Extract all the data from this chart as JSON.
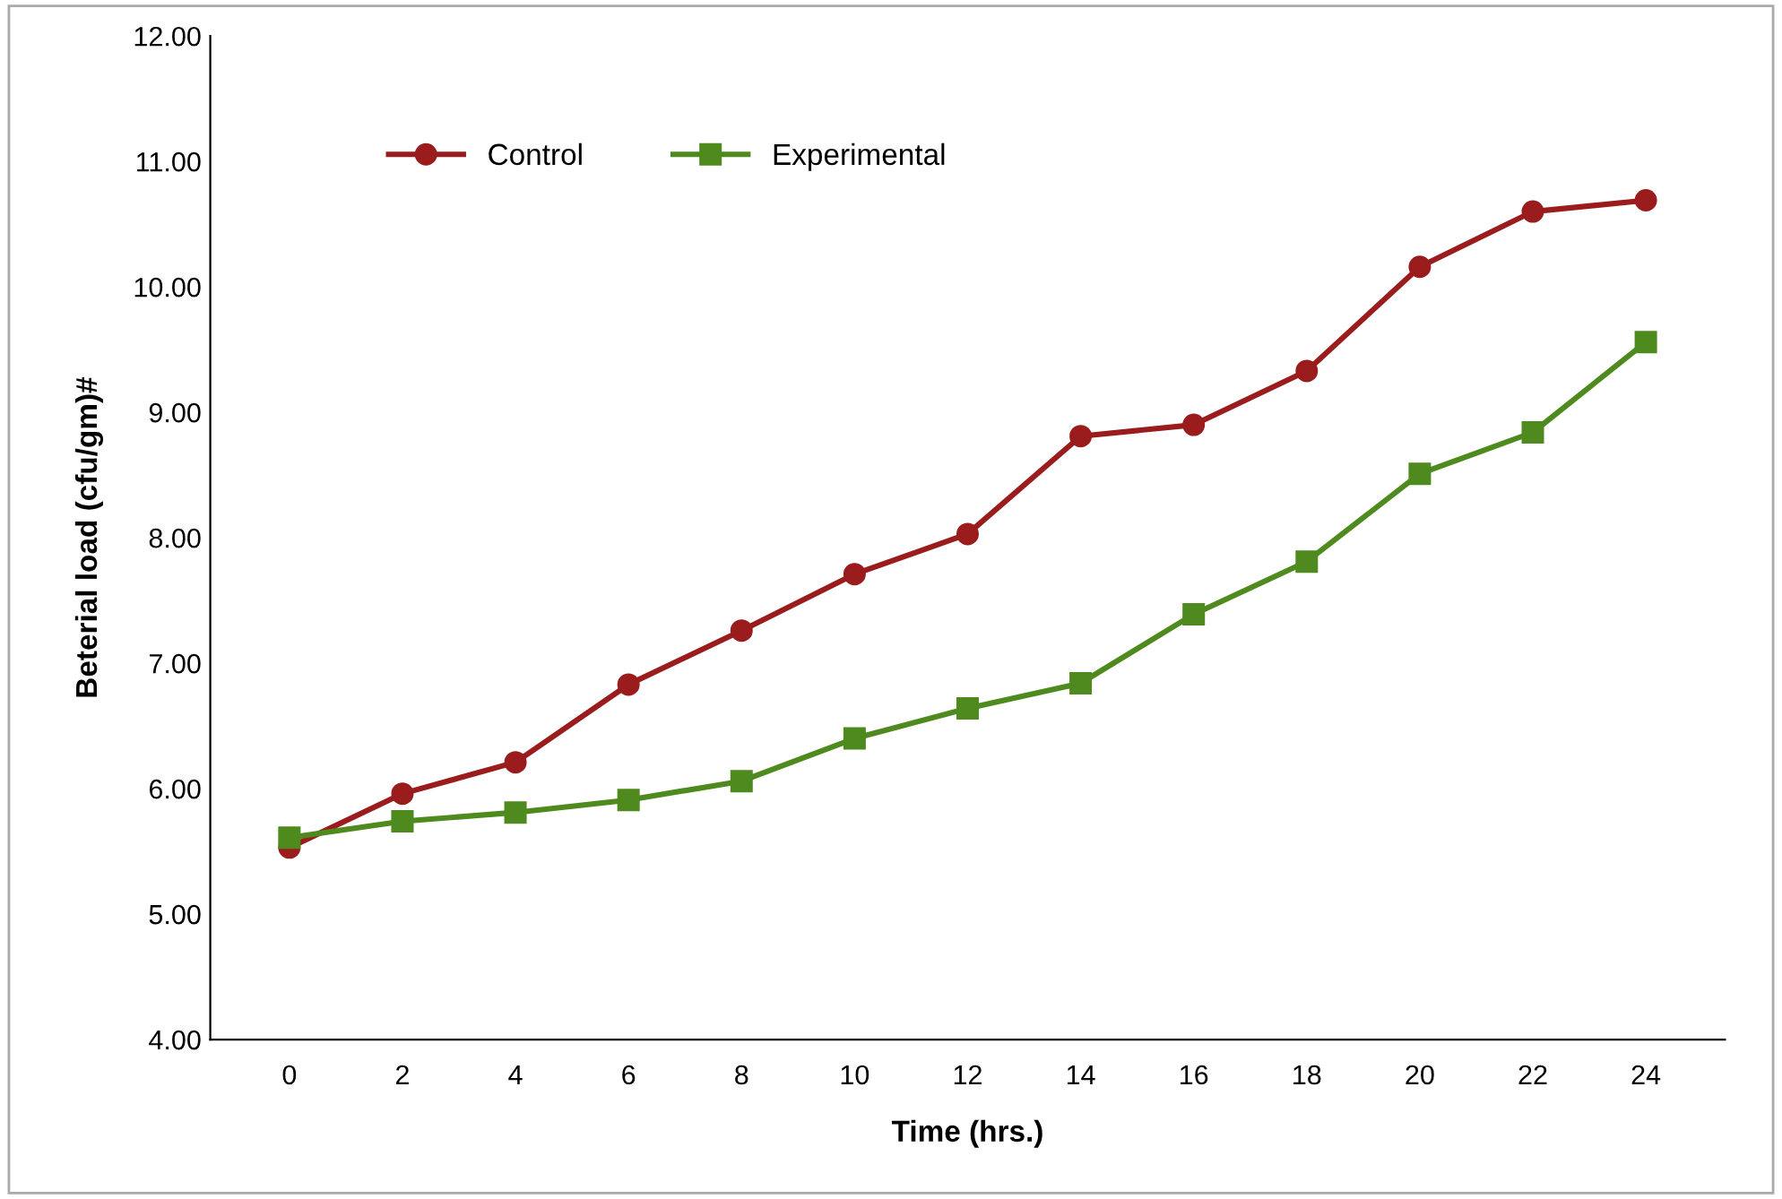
{
  "chart_data": {
    "type": "line",
    "xlabel": "Time (hrs.)",
    "ylabel": "Beterial load (cfu/gm)#",
    "categories": [
      "0",
      "2",
      "4",
      "6",
      "8",
      "10",
      "12",
      "14",
      "16",
      "18",
      "20",
      "22",
      "24"
    ],
    "series": [
      {
        "name": "Control",
        "color": "#9b1c1c",
        "marker": "circle",
        "values": [
          5.53,
          5.96,
          6.21,
          6.83,
          7.26,
          7.71,
          8.03,
          8.81,
          8.9,
          9.33,
          10.16,
          10.6,
          10.69
        ]
      },
      {
        "name": "Experimental",
        "color": "#4e8a1e",
        "marker": "square",
        "values": [
          5.61,
          5.74,
          5.81,
          5.91,
          6.06,
          6.4,
          6.64,
          6.84,
          7.39,
          7.81,
          8.51,
          8.84,
          9.56
        ]
      }
    ],
    "ylim": [
      4,
      12
    ],
    "yticks": [
      {
        "value": 4,
        "label": "4.00"
      },
      {
        "value": 5,
        "label": "5.00"
      },
      {
        "value": 6,
        "label": "6.00"
      },
      {
        "value": 7,
        "label": "7.00"
      },
      {
        "value": 8,
        "label": "8.00"
      },
      {
        "value": 9,
        "label": "9.00"
      },
      {
        "value": 10,
        "label": "10.00"
      },
      {
        "value": 11,
        "label": "11.00"
      },
      {
        "value": 12,
        "label": "12.00"
      }
    ],
    "grid": false,
    "legend": "top left",
    "line_style": "solid"
  }
}
